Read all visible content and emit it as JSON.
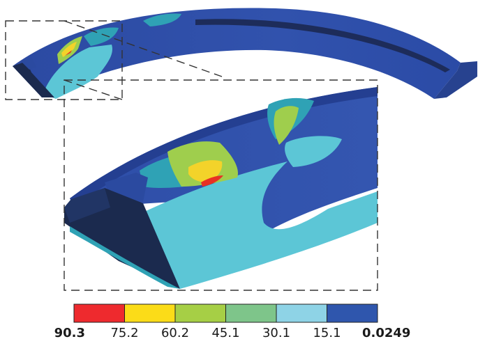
{
  "legend": {
    "colors": [
      "#ee2a2e",
      "#fbdc18",
      "#a6cf45",
      "#7ec58a",
      "#8ed3e6",
      "#2f56ad"
    ],
    "labels": [
      {
        "text": "90.3",
        "bold": true
      },
      {
        "text": "75.2",
        "bold": false
      },
      {
        "text": "60.2",
        "bold": false
      },
      {
        "text": "45.1",
        "bold": false
      },
      {
        "text": "30.1",
        "bold": false
      },
      {
        "text": "15.1",
        "bold": false
      },
      {
        "text": "0.0249",
        "bold": true
      }
    ]
  },
  "palette": {
    "body": "#2f4fa8",
    "dark_face": "#1b2a4e",
    "cyan": "#5cc6d6",
    "teal": "#2fa2b5",
    "green": "#9fce4d",
    "yellow": "#f3d32a",
    "red": "#e83024",
    "groove": "#1d2c5a"
  }
}
